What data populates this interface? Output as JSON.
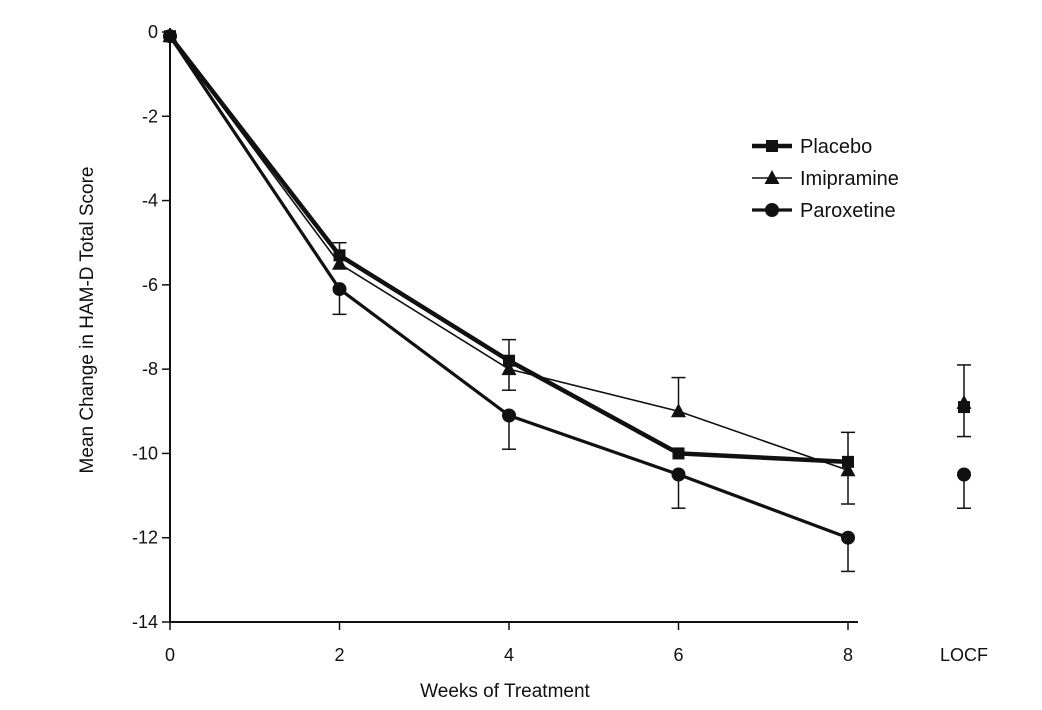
{
  "chart_data": {
    "type": "line",
    "title": "",
    "xlabel": "Weeks of Treatment",
    "ylabel": "Mean Change in HAM-D Total Score",
    "x_categories": [
      "0",
      "2",
      "4",
      "6",
      "8",
      "LOCF"
    ],
    "x_values": [
      0,
      2,
      4,
      6,
      8
    ],
    "ylim": [
      -14,
      0
    ],
    "y_ticks": [
      "0",
      "-2",
      "-4",
      "-6",
      "-8",
      "-10",
      "-12",
      "-14"
    ],
    "y_tick_values": [
      0,
      -2,
      -4,
      -6,
      -8,
      -10,
      -12,
      -14
    ],
    "legend_position": "top-right",
    "grid": false,
    "series": [
      {
        "name": "Placebo",
        "marker": "square",
        "values": [
          -0.1,
          -5.3,
          -7.8,
          -10.0,
          -10.2
        ],
        "locf": -8.9,
        "error_up": [
          null,
          5.0,
          7.3,
          null,
          9.5
        ],
        "error_down": [
          null,
          null,
          null,
          null,
          null
        ],
        "locf_error_up": 7.9,
        "locf_error_down": null
      },
      {
        "name": "Imipramine",
        "marker": "triangle",
        "values": [
          -0.1,
          -5.5,
          -8.0,
          -9.0,
          -10.4
        ],
        "locf": -8.8,
        "error_up": [
          null,
          null,
          null,
          8.2,
          null
        ],
        "error_down": [
          null,
          null,
          8.5,
          null,
          11.2
        ],
        "locf_error_up": null,
        "locf_error_down": 9.6
      },
      {
        "name": "Paroxetine",
        "marker": "circle",
        "values": [
          -0.1,
          -6.1,
          -9.1,
          -10.5,
          -12.0
        ],
        "locf": -10.5,
        "error_up": [
          null,
          null,
          null,
          null,
          null
        ],
        "error_down": [
          null,
          6.7,
          9.9,
          11.3,
          12.8
        ],
        "locf_error_up": null,
        "locf_error_down": 11.3
      }
    ]
  }
}
